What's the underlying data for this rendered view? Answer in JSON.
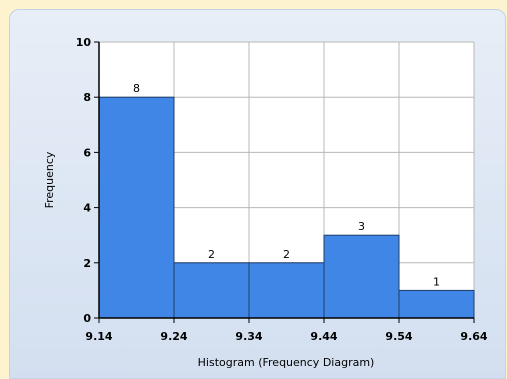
{
  "colors": {
    "bar": "#3f86e6",
    "bar_border": "#1f3d66",
    "plot_bg": "#ffffff",
    "grid": "#b8b8b8"
  },
  "chart_data": {
    "type": "bar",
    "title": "",
    "xlabel": "Histogram (Frequency Diagram)",
    "ylabel": "Frequency",
    "x_ticks": [
      "9.14",
      "9.24",
      "9.34",
      "9.44",
      "9.54",
      "9.64"
    ],
    "y_ticks": [
      "0",
      "2",
      "4",
      "6",
      "8",
      "10"
    ],
    "bins": [
      {
        "from": 9.14,
        "to": 9.24,
        "value": 8
      },
      {
        "from": 9.24,
        "to": 9.34,
        "value": 2
      },
      {
        "from": 9.34,
        "to": 9.44,
        "value": 2
      },
      {
        "from": 9.44,
        "to": 9.54,
        "value": 3
      },
      {
        "from": 9.54,
        "to": 9.64,
        "value": 1
      }
    ],
    "values": [
      8,
      2,
      2,
      3,
      1
    ],
    "xlim": [
      9.14,
      9.64
    ],
    "ylim": [
      0,
      10
    ],
    "grid": true,
    "legend": "none"
  }
}
